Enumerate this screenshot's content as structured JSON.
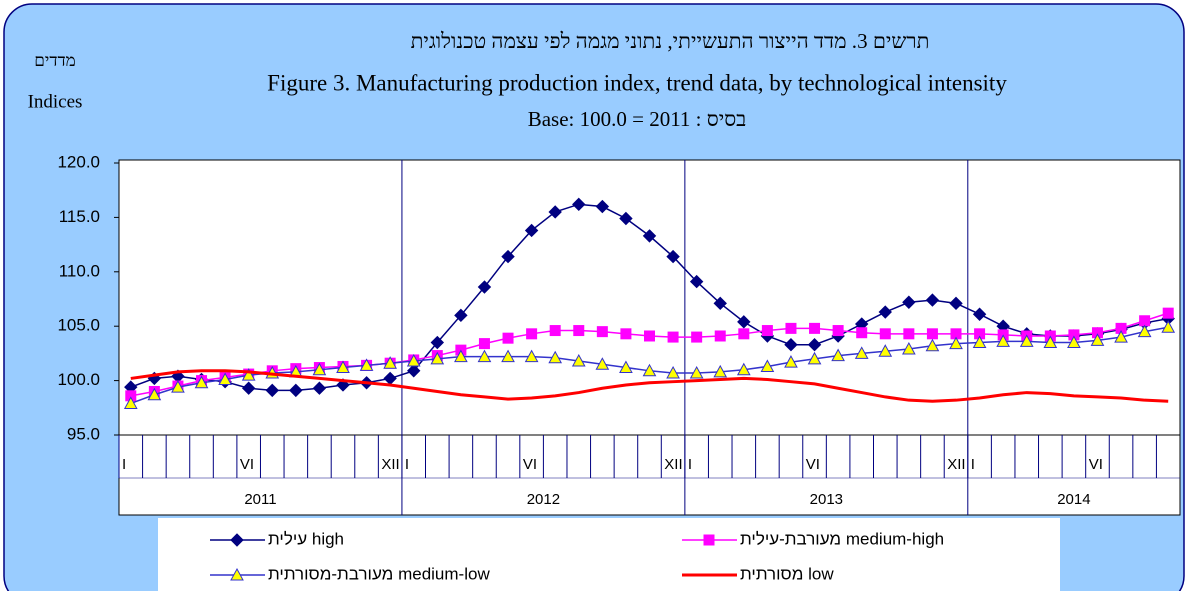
{
  "chart_data": {
    "type": "line",
    "title": "תרשים 3. מדד הייצור התעשייתי, נתוני מגמה לפי עצמה טכנולוגית",
    "subtitle": "Figure 3. Manufacturing production index, trend data, by technological intensity",
    "base_note": "Base: 100.0 = 2011 : בסיס",
    "y_label_hebrew": "מדדים",
    "y_label": "Indices",
    "categories": [
      "I",
      null,
      null,
      null,
      null,
      "VI",
      null,
      null,
      null,
      null,
      null,
      "XII",
      "I",
      null,
      null,
      null,
      null,
      "VI",
      null,
      null,
      null,
      null,
      null,
      "XII",
      "I",
      null,
      null,
      null,
      null,
      "VI",
      null,
      null,
      null,
      null,
      null,
      "XII",
      "I",
      null,
      null,
      null,
      null,
      "VI",
      null,
      null,
      null
    ],
    "year_labels": [
      "2011",
      "2012",
      "2013",
      "2014"
    ],
    "ylim": [
      95,
      120
    ],
    "yticks": [
      {
        "value": 95,
        "label": "95.0"
      },
      {
        "value": 100,
        "label": "100.0"
      },
      {
        "value": 105,
        "label": "105.0"
      },
      {
        "value": 110,
        "label": "110.0"
      },
      {
        "value": 115,
        "label": "115.0"
      },
      {
        "value": 120,
        "label": "120.0"
      }
    ],
    "series": [
      {
        "name": "עילית high",
        "color": "#000080",
        "marker": "diamond",
        "marker_fill": "#000080",
        "values": [
          99.4,
          100.2,
          100.4,
          100.1,
          99.9,
          99.3,
          99.1,
          99.1,
          99.3,
          99.6,
          99.8,
          100.2,
          100.9,
          103.5,
          106.0,
          108.6,
          111.4,
          113.8,
          115.5,
          116.2,
          116.0,
          114.9,
          113.3,
          111.4,
          109.1,
          107.1,
          105.4,
          104.1,
          103.3,
          103.3,
          104.1,
          105.2,
          106.3,
          107.2,
          107.4,
          107.1,
          106.1,
          105.0,
          104.3,
          104.1,
          104.1,
          104.3,
          104.7,
          105.3,
          105.7
        ]
      },
      {
        "name": "מעורבת-עילית medium-high",
        "color": "#ff00ff",
        "marker": "square",
        "marker_fill": "#ff00ff",
        "values": [
          98.6,
          99.0,
          99.5,
          100.0,
          100.3,
          100.6,
          100.9,
          101.1,
          101.2,
          101.3,
          101.4,
          101.6,
          101.9,
          102.3,
          102.8,
          103.4,
          103.9,
          104.3,
          104.6,
          104.6,
          104.5,
          104.3,
          104.1,
          104.0,
          104.0,
          104.1,
          104.3,
          104.6,
          104.8,
          104.8,
          104.6,
          104.4,
          104.3,
          104.3,
          104.3,
          104.3,
          104.3,
          104.2,
          104.1,
          104.1,
          104.2,
          104.4,
          104.8,
          105.5,
          106.2
        ]
      },
      {
        "name": "מעורבת-מסורתית medium-low",
        "color": "#3333cc",
        "marker": "triangle",
        "marker_fill": "#ffff00",
        "values": [
          97.9,
          98.7,
          99.4,
          99.8,
          100.1,
          100.5,
          100.7,
          100.8,
          101.0,
          101.2,
          101.4,
          101.6,
          101.8,
          102.0,
          102.2,
          102.2,
          102.2,
          102.2,
          102.1,
          101.8,
          101.5,
          101.2,
          100.9,
          100.7,
          100.7,
          100.8,
          101.0,
          101.3,
          101.7,
          102.0,
          102.3,
          102.5,
          102.7,
          102.9,
          103.2,
          103.4,
          103.5,
          103.6,
          103.6,
          103.5,
          103.5,
          103.7,
          104.0,
          104.5,
          104.9
        ]
      },
      {
        "name": "מסורתית low",
        "color": "#ff0000",
        "marker": "none",
        "marker_fill": "#ff0000",
        "values": [
          100.2,
          100.5,
          100.8,
          100.9,
          100.9,
          100.8,
          100.6,
          100.4,
          100.2,
          100.0,
          99.8,
          99.6,
          99.3,
          99.0,
          98.7,
          98.5,
          98.3,
          98.4,
          98.6,
          98.9,
          99.3,
          99.6,
          99.8,
          99.9,
          100.0,
          100.1,
          100.2,
          100.1,
          99.9,
          99.7,
          99.3,
          98.9,
          98.5,
          98.2,
          98.1,
          98.2,
          98.4,
          98.7,
          98.9,
          98.8,
          98.6,
          98.5,
          98.4,
          98.2,
          98.1
        ]
      }
    ],
    "grid": false
  }
}
